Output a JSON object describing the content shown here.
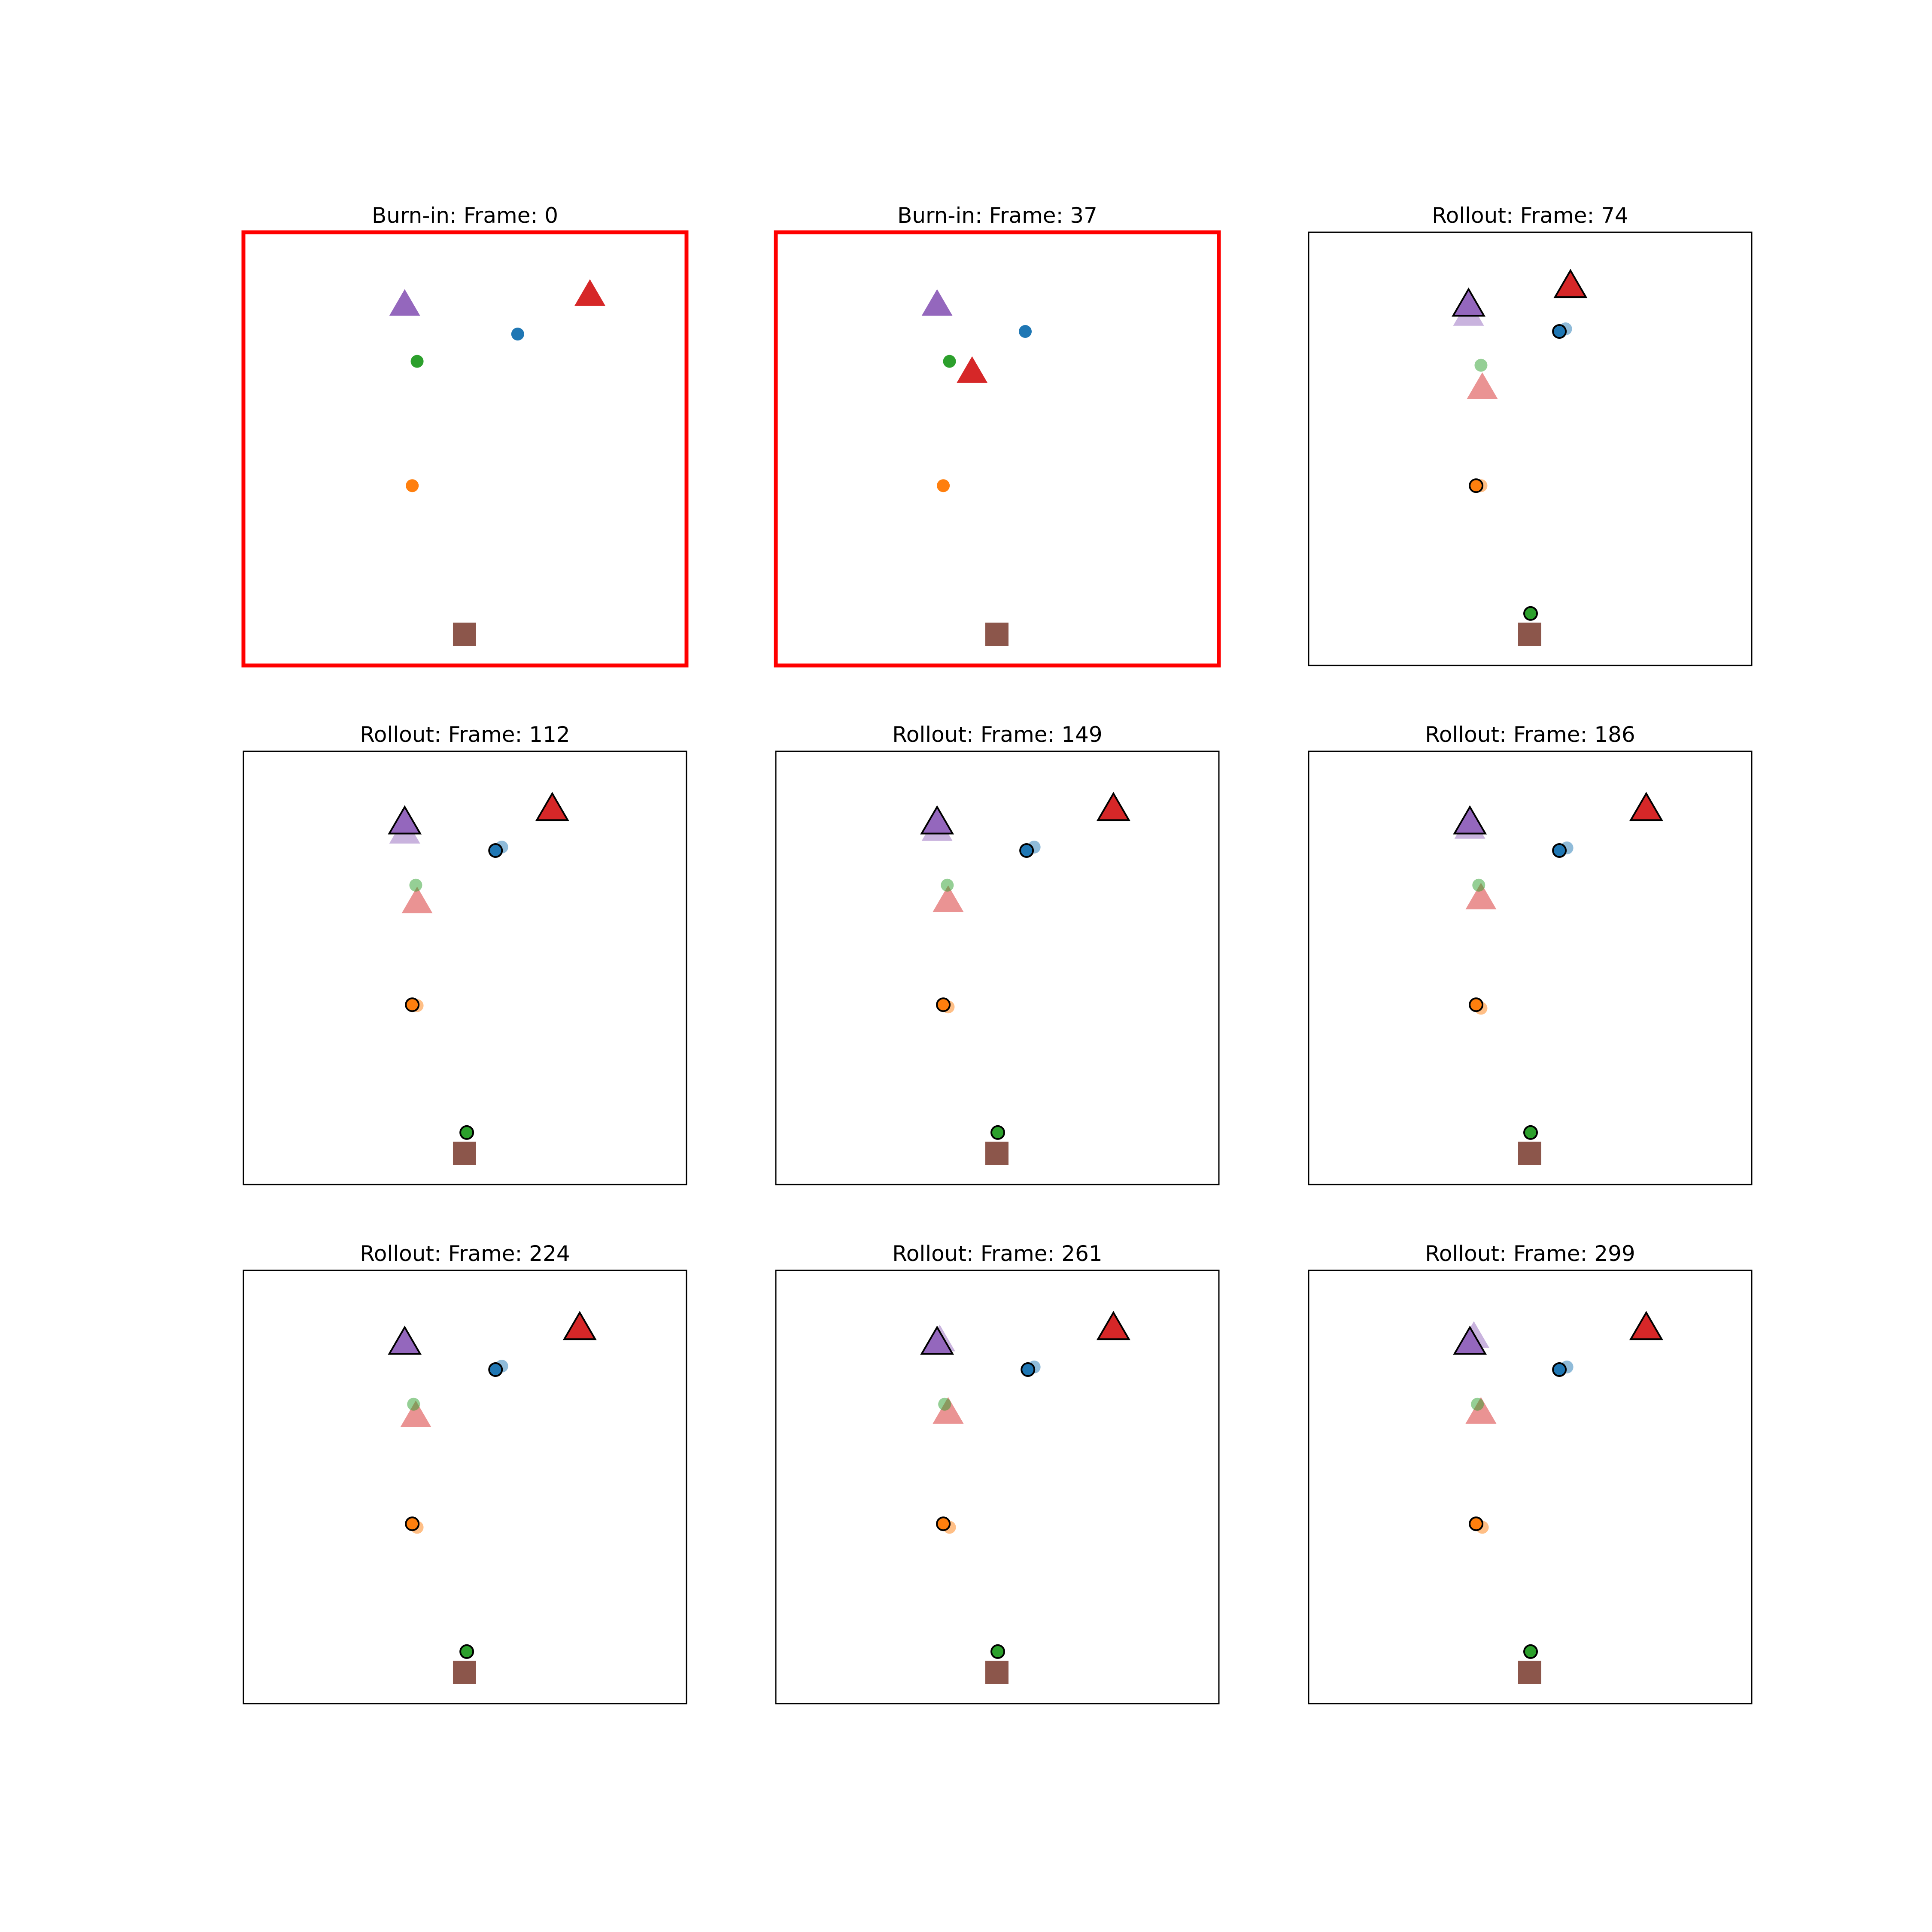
{
  "chart_data": [
    {
      "type": "scatter",
      "title": "Burn-in: Frame: 0",
      "border_color": "#ff0000",
      "xlim": [
        0,
        1
      ],
      "ylim": [
        0,
        1
      ],
      "points": [
        {
          "marker": "triangle",
          "color": "#9467bd",
          "alpha": 1,
          "edge": null,
          "x": 0.364,
          "y": 0.831
        },
        {
          "marker": "triangle",
          "color": "#d62728",
          "alpha": 1,
          "edge": null,
          "x": 0.782,
          "y": 0.854
        },
        {
          "marker": "circle",
          "color": "#1f77b4",
          "alpha": 1,
          "edge": null,
          "x": 0.619,
          "y": 0.765
        },
        {
          "marker": "circle",
          "color": "#2ca02c",
          "alpha": 1,
          "edge": null,
          "x": 0.392,
          "y": 0.702
        },
        {
          "marker": "circle",
          "color": "#ff7f0e",
          "alpha": 1,
          "edge": null,
          "x": 0.381,
          "y": 0.415
        },
        {
          "marker": "square",
          "color": "#8c564b",
          "alpha": 1,
          "edge": null,
          "x": 0.499,
          "y": 0.072
        }
      ]
    },
    {
      "type": "scatter",
      "title": "Burn-in: Frame: 37",
      "border_color": "#ff0000",
      "xlim": [
        0,
        1
      ],
      "ylim": [
        0,
        1
      ],
      "points": [
        {
          "marker": "triangle",
          "color": "#9467bd",
          "alpha": 1,
          "edge": null,
          "x": 0.364,
          "y": 0.831
        },
        {
          "marker": "triangle",
          "color": "#d62728",
          "alpha": 1,
          "edge": null,
          "x": 0.443,
          "y": 0.676
        },
        {
          "marker": "circle",
          "color": "#1f77b4",
          "alpha": 1,
          "edge": null,
          "x": 0.563,
          "y": 0.771
        },
        {
          "marker": "circle",
          "color": "#2ca02c",
          "alpha": 1,
          "edge": null,
          "x": 0.392,
          "y": 0.702
        },
        {
          "marker": "circle",
          "color": "#ff7f0e",
          "alpha": 1,
          "edge": null,
          "x": 0.378,
          "y": 0.415
        },
        {
          "marker": "square",
          "color": "#8c564b",
          "alpha": 1,
          "edge": null,
          "x": 0.499,
          "y": 0.072
        }
      ]
    },
    {
      "type": "scatter",
      "title": "Rollout: Frame: 74",
      "border_color": "#000000",
      "xlim": [
        0,
        1
      ],
      "ylim": [
        0,
        1
      ],
      "points": [
        {
          "marker": "triangle",
          "color": "#9467bd",
          "alpha": 0.5,
          "edge": null,
          "x": 0.361,
          "y": 0.808
        },
        {
          "marker": "triangle",
          "color": "#d62728",
          "alpha": 0.5,
          "edge": null,
          "x": 0.392,
          "y": 0.639
        },
        {
          "marker": "circle",
          "color": "#1f77b4",
          "alpha": 0.5,
          "edge": null,
          "x": 0.58,
          "y": 0.777
        },
        {
          "marker": "circle",
          "color": "#2ca02c",
          "alpha": 0.5,
          "edge": null,
          "x": 0.389,
          "y": 0.693
        },
        {
          "marker": "circle",
          "color": "#ff7f0e",
          "alpha": 0.5,
          "edge": null,
          "x": 0.389,
          "y": 0.415
        },
        {
          "marker": "triangle",
          "color": "#9467bd",
          "alpha": 1,
          "edge": "#000000",
          "x": 0.361,
          "y": 0.831
        },
        {
          "marker": "triangle",
          "color": "#d62728",
          "alpha": 1,
          "edge": "#000000",
          "x": 0.591,
          "y": 0.874
        },
        {
          "marker": "circle",
          "color": "#1f77b4",
          "alpha": 1,
          "edge": "#000000",
          "x": 0.566,
          "y": 0.771
        },
        {
          "marker": "circle",
          "color": "#2ca02c",
          "alpha": 1,
          "edge": "#000000",
          "x": 0.501,
          "y": 0.12
        },
        {
          "marker": "circle",
          "color": "#ff7f0e",
          "alpha": 1,
          "edge": "#000000",
          "x": 0.378,
          "y": 0.415
        },
        {
          "marker": "square",
          "color": "#8c564b",
          "alpha": 1,
          "edge": null,
          "x": 0.499,
          "y": 0.072
        }
      ]
    },
    {
      "type": "scatter",
      "title": "Rollout: Frame: 112",
      "border_color": "#000000",
      "xlim": [
        0,
        1
      ],
      "ylim": [
        0,
        1
      ],
      "points": [
        {
          "marker": "triangle",
          "color": "#9467bd",
          "alpha": 0.5,
          "edge": null,
          "x": 0.364,
          "y": 0.811
        },
        {
          "marker": "triangle",
          "color": "#d62728",
          "alpha": 0.5,
          "edge": null,
          "x": 0.392,
          "y": 0.65
        },
        {
          "marker": "circle",
          "color": "#1f77b4",
          "alpha": 0.5,
          "edge": null,
          "x": 0.583,
          "y": 0.779
        },
        {
          "marker": "circle",
          "color": "#2ca02c",
          "alpha": 0.5,
          "edge": null,
          "x": 0.389,
          "y": 0.691
        },
        {
          "marker": "circle",
          "color": "#ff7f0e",
          "alpha": 0.5,
          "edge": null,
          "x": 0.392,
          "y": 0.413
        },
        {
          "marker": "triangle",
          "color": "#9467bd",
          "alpha": 1,
          "edge": "#000000",
          "x": 0.364,
          "y": 0.834
        },
        {
          "marker": "triangle",
          "color": "#d62728",
          "alpha": 1,
          "edge": "#000000",
          "x": 0.697,
          "y": 0.865
        },
        {
          "marker": "circle",
          "color": "#1f77b4",
          "alpha": 1,
          "edge": "#000000",
          "x": 0.569,
          "y": 0.771
        },
        {
          "marker": "circle",
          "color": "#2ca02c",
          "alpha": 1,
          "edge": "#000000",
          "x": 0.504,
          "y": 0.12
        },
        {
          "marker": "circle",
          "color": "#ff7f0e",
          "alpha": 1,
          "edge": "#000000",
          "x": 0.381,
          "y": 0.415
        },
        {
          "marker": "square",
          "color": "#8c564b",
          "alpha": 1,
          "edge": null,
          "x": 0.499,
          "y": 0.072
        }
      ]
    },
    {
      "type": "scatter",
      "title": "Rollout: Frame: 149",
      "border_color": "#000000",
      "xlim": [
        0,
        1
      ],
      "ylim": [
        0,
        1
      ],
      "points": [
        {
          "marker": "triangle",
          "color": "#9467bd",
          "alpha": 0.5,
          "edge": null,
          "x": 0.364,
          "y": 0.817
        },
        {
          "marker": "triangle",
          "color": "#d62728",
          "alpha": 0.5,
          "edge": null,
          "x": 0.389,
          "y": 0.653
        },
        {
          "marker": "circle",
          "color": "#1f77b4",
          "alpha": 0.5,
          "edge": null,
          "x": 0.583,
          "y": 0.779
        },
        {
          "marker": "circle",
          "color": "#2ca02c",
          "alpha": 0.5,
          "edge": null,
          "x": 0.387,
          "y": 0.691
        },
        {
          "marker": "circle",
          "color": "#ff7f0e",
          "alpha": 0.5,
          "edge": null,
          "x": 0.389,
          "y": 0.41
        },
        {
          "marker": "triangle",
          "color": "#9467bd",
          "alpha": 1,
          "edge": "#000000",
          "x": 0.364,
          "y": 0.834
        },
        {
          "marker": "triangle",
          "color": "#d62728",
          "alpha": 1,
          "edge": "#000000",
          "x": 0.762,
          "y": 0.865
        },
        {
          "marker": "circle",
          "color": "#1f77b4",
          "alpha": 1,
          "edge": "#000000",
          "x": 0.566,
          "y": 0.771
        },
        {
          "marker": "circle",
          "color": "#2ca02c",
          "alpha": 1,
          "edge": "#000000",
          "x": 0.501,
          "y": 0.12
        },
        {
          "marker": "circle",
          "color": "#ff7f0e",
          "alpha": 1,
          "edge": "#000000",
          "x": 0.378,
          "y": 0.415
        },
        {
          "marker": "square",
          "color": "#8c564b",
          "alpha": 1,
          "edge": null,
          "x": 0.499,
          "y": 0.072
        }
      ]
    },
    {
      "type": "scatter",
      "title": "Rollout: Frame: 186",
      "border_color": "#000000",
      "xlim": [
        0,
        1
      ],
      "ylim": [
        0,
        1
      ],
      "points": [
        {
          "marker": "triangle",
          "color": "#9467bd",
          "alpha": 0.5,
          "edge": null,
          "x": 0.364,
          "y": 0.822
        },
        {
          "marker": "triangle",
          "color": "#d62728",
          "alpha": 0.5,
          "edge": null,
          "x": 0.389,
          "y": 0.659
        },
        {
          "marker": "circle",
          "color": "#1f77b4",
          "alpha": 0.5,
          "edge": null,
          "x": 0.583,
          "y": 0.777
        },
        {
          "marker": "circle",
          "color": "#2ca02c",
          "alpha": 0.5,
          "edge": null,
          "x": 0.384,
          "y": 0.691
        },
        {
          "marker": "circle",
          "color": "#ff7f0e",
          "alpha": 0.5,
          "edge": null,
          "x": 0.389,
          "y": 0.407
        },
        {
          "marker": "triangle",
          "color": "#9467bd",
          "alpha": 1,
          "edge": "#000000",
          "x": 0.364,
          "y": 0.834
        },
        {
          "marker": "triangle",
          "color": "#d62728",
          "alpha": 1,
          "edge": "#000000",
          "x": 0.762,
          "y": 0.865
        },
        {
          "marker": "circle",
          "color": "#1f77b4",
          "alpha": 1,
          "edge": "#000000",
          "x": 0.566,
          "y": 0.771
        },
        {
          "marker": "circle",
          "color": "#2ca02c",
          "alpha": 1,
          "edge": "#000000",
          "x": 0.501,
          "y": 0.12
        },
        {
          "marker": "circle",
          "color": "#ff7f0e",
          "alpha": 1,
          "edge": "#000000",
          "x": 0.378,
          "y": 0.415
        },
        {
          "marker": "square",
          "color": "#8c564b",
          "alpha": 1,
          "edge": null,
          "x": 0.499,
          "y": 0.072
        }
      ]
    },
    {
      "type": "scatter",
      "title": "Rollout: Frame: 224",
      "border_color": "#000000",
      "xlim": [
        0,
        1
      ],
      "ylim": [
        0,
        1
      ],
      "points": [
        {
          "marker": "triangle",
          "color": "#9467bd",
          "alpha": 0.5,
          "edge": null,
          "x": 0.364,
          "y": 0.831
        },
        {
          "marker": "triangle",
          "color": "#d62728",
          "alpha": 0.5,
          "edge": null,
          "x": 0.389,
          "y": 0.662
        },
        {
          "marker": "circle",
          "color": "#1f77b4",
          "alpha": 0.5,
          "edge": null,
          "x": 0.583,
          "y": 0.779
        },
        {
          "marker": "circle",
          "color": "#2ca02c",
          "alpha": 0.5,
          "edge": null,
          "x": 0.384,
          "y": 0.691
        },
        {
          "marker": "circle",
          "color": "#ff7f0e",
          "alpha": 0.5,
          "edge": null,
          "x": 0.392,
          "y": 0.407
        },
        {
          "marker": "triangle",
          "color": "#9467bd",
          "alpha": 1,
          "edge": "#000000",
          "x": 0.364,
          "y": 0.831
        },
        {
          "marker": "triangle",
          "color": "#d62728",
          "alpha": 1,
          "edge": "#000000",
          "x": 0.759,
          "y": 0.865
        },
        {
          "marker": "circle",
          "color": "#1f77b4",
          "alpha": 1,
          "edge": "#000000",
          "x": 0.569,
          "y": 0.771
        },
        {
          "marker": "circle",
          "color": "#2ca02c",
          "alpha": 1,
          "edge": "#000000",
          "x": 0.504,
          "y": 0.12
        },
        {
          "marker": "circle",
          "color": "#ff7f0e",
          "alpha": 1,
          "edge": "#000000",
          "x": 0.381,
          "y": 0.415
        },
        {
          "marker": "square",
          "color": "#8c564b",
          "alpha": 1,
          "edge": null,
          "x": 0.499,
          "y": 0.072
        }
      ]
    },
    {
      "type": "scatter",
      "title": "Rollout: Frame: 261",
      "border_color": "#000000",
      "xlim": [
        0,
        1
      ],
      "ylim": [
        0,
        1
      ],
      "points": [
        {
          "marker": "triangle",
          "color": "#9467bd",
          "alpha": 0.5,
          "edge": null,
          "x": 0.37,
          "y": 0.837
        },
        {
          "marker": "triangle",
          "color": "#d62728",
          "alpha": 0.5,
          "edge": null,
          "x": 0.389,
          "y": 0.67
        },
        {
          "marker": "circle",
          "color": "#1f77b4",
          "alpha": 0.5,
          "edge": null,
          "x": 0.583,
          "y": 0.777
        },
        {
          "marker": "circle",
          "color": "#2ca02c",
          "alpha": 0.5,
          "edge": null,
          "x": 0.381,
          "y": 0.691
        },
        {
          "marker": "circle",
          "color": "#ff7f0e",
          "alpha": 0.5,
          "edge": null,
          "x": 0.392,
          "y": 0.407
        },
        {
          "marker": "triangle",
          "color": "#9467bd",
          "alpha": 1,
          "edge": "#000000",
          "x": 0.364,
          "y": 0.831
        },
        {
          "marker": "triangle",
          "color": "#d62728",
          "alpha": 1,
          "edge": "#000000",
          "x": 0.762,
          "y": 0.865
        },
        {
          "marker": "circle",
          "color": "#1f77b4",
          "alpha": 1,
          "edge": "#000000",
          "x": 0.569,
          "y": 0.771
        },
        {
          "marker": "circle",
          "color": "#2ca02c",
          "alpha": 1,
          "edge": "#000000",
          "x": 0.501,
          "y": 0.12
        },
        {
          "marker": "circle",
          "color": "#ff7f0e",
          "alpha": 1,
          "edge": "#000000",
          "x": 0.378,
          "y": 0.415
        },
        {
          "marker": "square",
          "color": "#8c564b",
          "alpha": 1,
          "edge": null,
          "x": 0.499,
          "y": 0.072
        }
      ]
    },
    {
      "type": "scatter",
      "title": "Rollout: Frame: 299",
      "border_color": "#000000",
      "xlim": [
        0,
        1
      ],
      "ylim": [
        0,
        1
      ],
      "points": [
        {
          "marker": "triangle",
          "color": "#9467bd",
          "alpha": 0.5,
          "edge": null,
          "x": 0.373,
          "y": 0.845
        },
        {
          "marker": "triangle",
          "color": "#d62728",
          "alpha": 0.5,
          "edge": null,
          "x": 0.389,
          "y": 0.67
        },
        {
          "marker": "circle",
          "color": "#1f77b4",
          "alpha": 0.5,
          "edge": null,
          "x": 0.583,
          "y": 0.777
        },
        {
          "marker": "circle",
          "color": "#2ca02c",
          "alpha": 0.5,
          "edge": null,
          "x": 0.381,
          "y": 0.691
        },
        {
          "marker": "circle",
          "color": "#ff7f0e",
          "alpha": 0.5,
          "edge": null,
          "x": 0.392,
          "y": 0.407
        },
        {
          "marker": "triangle",
          "color": "#9467bd",
          "alpha": 1,
          "edge": "#000000",
          "x": 0.364,
          "y": 0.831
        },
        {
          "marker": "triangle",
          "color": "#d62728",
          "alpha": 1,
          "edge": "#000000",
          "x": 0.762,
          "y": 0.865
        },
        {
          "marker": "circle",
          "color": "#1f77b4",
          "alpha": 1,
          "edge": "#000000",
          "x": 0.566,
          "y": 0.771
        },
        {
          "marker": "circle",
          "color": "#2ca02c",
          "alpha": 1,
          "edge": "#000000",
          "x": 0.501,
          "y": 0.12
        },
        {
          "marker": "circle",
          "color": "#ff7f0e",
          "alpha": 1,
          "edge": "#000000",
          "x": 0.378,
          "y": 0.415
        },
        {
          "marker": "square",
          "color": "#8c564b",
          "alpha": 1,
          "edge": null,
          "x": 0.499,
          "y": 0.072
        }
      ]
    }
  ]
}
